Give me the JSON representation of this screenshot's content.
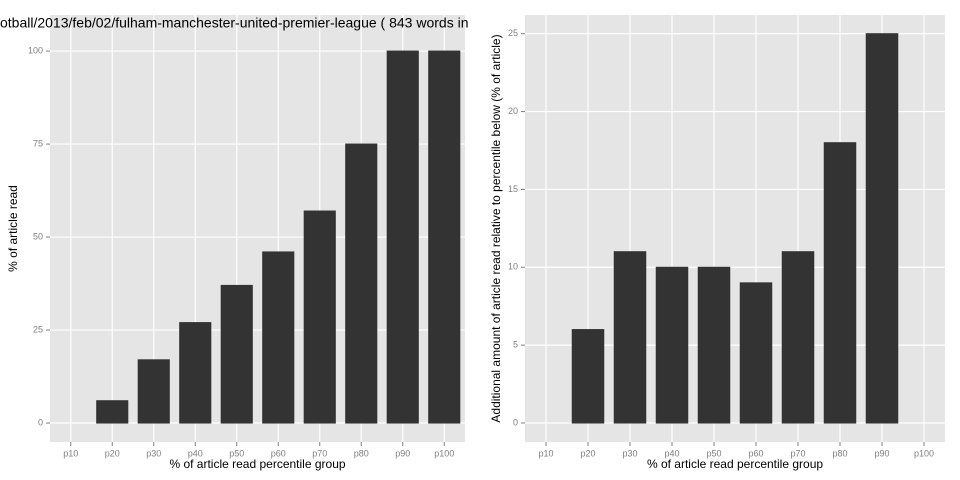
{
  "chart_data": [
    {
      "type": "bar",
      "title": "otball/2013/feb/02/fulham-manchester-united-premier-league ( 843 words in",
      "x_label": "% of article read percentile group",
      "y_label": "% of article read",
      "categories": [
        "p10",
        "p20",
        "p30",
        "p40",
        "p50",
        "p60",
        "p70",
        "p80",
        "p90",
        "p100"
      ],
      "values": [
        0,
        6,
        17,
        27,
        37,
        46,
        57,
        75,
        100,
        100
      ],
      "color": "#333333",
      "ylim": [
        -5.1,
        109.7
      ],
      "yticks": [
        0,
        25,
        50,
        75,
        100
      ],
      "grid": true
    },
    {
      "type": "bar",
      "x_label": "% of article read percentile group",
      "y_label": "Additional amount of article read relative to percentile below (% of article)",
      "categories": [
        "p10",
        "p20",
        "p30",
        "p40",
        "p50",
        "p60",
        "p70",
        "p80",
        "p90",
        "p100"
      ],
      "values": [
        0,
        6,
        11,
        10,
        10,
        9,
        11,
        18,
        25,
        0
      ],
      "color": "#333333",
      "ylim": [
        -1.22,
        26.2
      ],
      "yticks": [
        0,
        5,
        10,
        15,
        20,
        25
      ],
      "grid": true
    }
  ]
}
